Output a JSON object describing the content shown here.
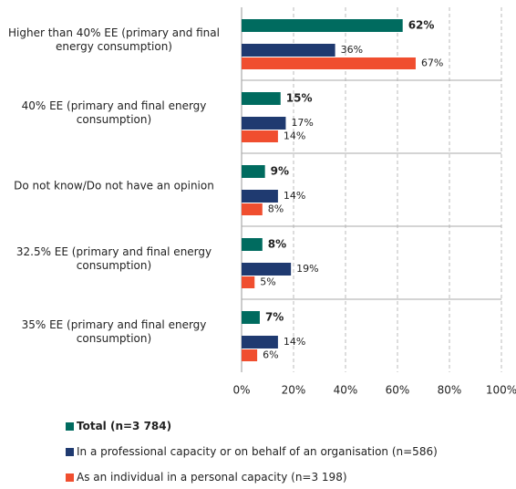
{
  "chart_data": {
    "type": "bar",
    "orientation": "horizontal",
    "categories": [
      "Higher than 40% EE (primary and final energy consumption)",
      "40% EE (primary and final energy consumption)",
      "Do not know/Do not have an opinion",
      "32.5% EE (primary and final energy consumption)",
      "35% EE (primary and final energy consumption)"
    ],
    "series": [
      {
        "name": "Total (n=3 784)",
        "color": "#006b5f",
        "values": [
          62,
          15,
          9,
          8,
          7
        ],
        "value_labels": [
          "62%",
          "15%",
          "9%",
          "8%",
          "7%"
        ]
      },
      {
        "name": "In a professional capacity or on behalf of an organisation (n=586)",
        "color": "#1f3a70",
        "values": [
          36,
          17,
          14,
          19,
          14
        ],
        "value_labels": [
          "36%",
          "17%",
          "14%",
          "19%",
          "14%"
        ]
      },
      {
        "name": "As an individual in a personal capacity (n=3 198)",
        "color": "#f04e2f",
        "values": [
          67,
          14,
          8,
          5,
          6
        ],
        "value_labels": [
          "67%",
          "14%",
          "8%",
          "5%",
          "6%"
        ]
      }
    ],
    "xlim": [
      0,
      100
    ],
    "xticks": [
      {
        "value": 0,
        "label": "0%"
      },
      {
        "value": 20,
        "label": "20%"
      },
      {
        "value": 40,
        "label": "40%"
      },
      {
        "value": 60,
        "label": "60%"
      },
      {
        "value": 80,
        "label": "80%"
      },
      {
        "value": 100,
        "label": "100%"
      }
    ],
    "grid": true,
    "legend": "bottom"
  }
}
